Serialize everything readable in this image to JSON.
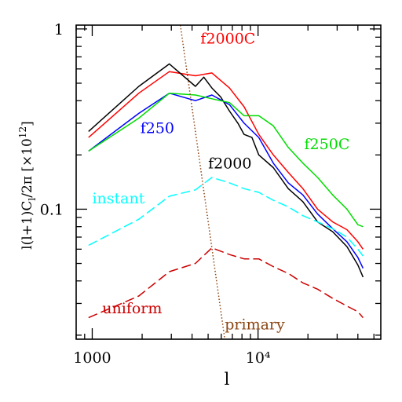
{
  "chart_data": {
    "type": "line",
    "xlabel": "l",
    "ylabel": "l(l+1)C",
    "ylabel_sub": "l",
    "ylabel_tail": "/2π  [×10",
    "ylabel_exp": "12",
    "ylabel_close": "]",
    "x_scale": "log",
    "y_scale": "log",
    "xlim": [
      800,
      55000
    ],
    "ylim": [
      0.019,
      1.05
    ],
    "x_ticks": [
      {
        "value": 1000,
        "label": "1000"
      },
      {
        "value": 10000,
        "label": "10⁴"
      }
    ],
    "y_ticks": [
      {
        "value": 1,
        "label": "1"
      },
      {
        "value": 0.1,
        "label": "0.1"
      }
    ],
    "grid": false,
    "series": [
      {
        "name": "f2000C",
        "color": "#ff0000",
        "dash": "",
        "x": [
          950,
          1910,
          2920,
          4190,
          5270,
          6730,
          8240,
          10100,
          12360,
          15220,
          18650,
          22870,
          28180,
          34380,
          40000,
          43000
        ],
        "y": [
          0.25,
          0.44,
          0.58,
          0.55,
          0.57,
          0.47,
          0.37,
          0.26,
          0.2,
          0.16,
          0.13,
          0.1,
          0.085,
          0.077,
          0.066,
          0.06
        ]
      },
      {
        "name": "",
        "color": "#000000",
        "dash": "",
        "x": [
          950,
          1910,
          2920,
          4190,
          4710,
          5270,
          5950,
          6730,
          7560,
          8240,
          9190,
          10100,
          12360,
          15220,
          18650,
          22870,
          28180,
          34380,
          40000,
          43000
        ],
        "y": [
          0.27,
          0.48,
          0.64,
          0.48,
          0.54,
          0.47,
          0.42,
          0.35,
          0.3,
          0.26,
          0.25,
          0.2,
          0.17,
          0.13,
          0.11,
          0.085,
          0.075,
          0.062,
          0.049,
          0.042
        ]
      },
      {
        "name": "f250",
        "color": "#0000ff",
        "dash": "",
        "x": [
          950,
          1910,
          2920,
          4190,
          5270,
          6730,
          8240,
          10100,
          12360,
          15220,
          18650,
          22870,
          28180,
          34380,
          40000,
          43000
        ],
        "y": [
          0.21,
          0.34,
          0.44,
          0.4,
          0.43,
          0.38,
          0.3,
          0.25,
          0.18,
          0.14,
          0.12,
          0.094,
          0.078,
          0.066,
          0.054,
          0.047
        ]
      },
      {
        "name": "f250C",
        "color": "#00dd00",
        "dash": "",
        "x": [
          950,
          1910,
          2920,
          4190,
          5270,
          6730,
          8240,
          10100,
          12360,
          15220,
          18650,
          22870,
          28180,
          34380,
          40000,
          43000
        ],
        "y": [
          0.21,
          0.32,
          0.44,
          0.43,
          0.41,
          0.39,
          0.33,
          0.33,
          0.29,
          0.22,
          0.18,
          0.15,
          0.12,
          0.1,
          0.082,
          0.08
        ]
      },
      {
        "name": "instant",
        "color": "#00ffff",
        "dash": "12,5",
        "x": [
          950,
          1910,
          2920,
          4190,
          5270,
          6730,
          8240,
          10100,
          12360,
          15220,
          18650,
          22870,
          28180,
          34380,
          40000,
          43000
        ],
        "y": [
          0.063,
          0.088,
          0.118,
          0.128,
          0.15,
          0.14,
          0.13,
          0.124,
          0.112,
          0.103,
          0.092,
          0.085,
          0.078,
          0.07,
          0.06,
          0.055
        ]
      },
      {
        "name": "uniform",
        "color": "#cc0000",
        "dash": "12,5",
        "x": [
          950,
          1910,
          2920,
          4190,
          5270,
          6730,
          8240,
          10100,
          12360,
          15220,
          18650,
          22870,
          28180,
          34380,
          40000,
          43000
        ],
        "y": [
          0.025,
          0.033,
          0.045,
          0.05,
          0.061,
          0.056,
          0.053,
          0.053,
          0.048,
          0.044,
          0.039,
          0.036,
          0.032,
          0.029,
          0.027,
          0.025
        ]
      },
      {
        "name": "primary",
        "color": "#8b4513",
        "dash": "1.5,2.5",
        "x": [
          3400,
          6300
        ],
        "y": [
          1.05,
          0.019
        ]
      }
    ],
    "annotations": [
      {
        "text": "f2000C",
        "color": "#ff0000",
        "x": 4500,
        "y": 0.83
      },
      {
        "text": "f250",
        "color": "#0000ff",
        "x": 1950,
        "y": 0.265
      },
      {
        "text": "f2000",
        "color": "#000000",
        "x": 5000,
        "y": 0.168
      },
      {
        "text": "f250C",
        "color": "#00dd00",
        "x": 19000,
        "y": 0.215
      },
      {
        "text": "instant",
        "color": "#00ffff",
        "x": 1000,
        "y": 0.108
      },
      {
        "text": "uniform",
        "color": "#cc0000",
        "x": 1150,
        "y": 0.0265
      },
      {
        "text": "primary",
        "color": "#8b4513",
        "x": 6300,
        "y": 0.0215
      }
    ]
  }
}
